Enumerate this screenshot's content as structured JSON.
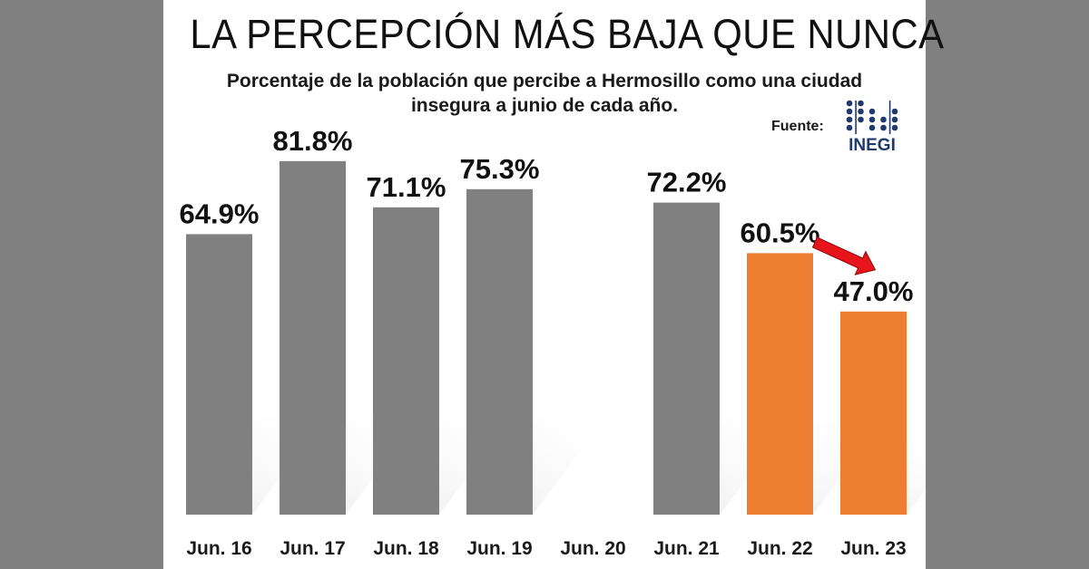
{
  "header": {
    "title": "LA PERCEPCIÓN MÁS BAJA QUE NUNCA",
    "subtitle": "Porcentaje de la población que percibe a Hermosillo como una ciudad insegura a junio de cada año.",
    "source_label": "Fuente:",
    "source_logo_text": "INEGI"
  },
  "colors": {
    "background": "#808080",
    "panel": "#ffffff",
    "bar_gray": "#808080",
    "bar_orange": "#ed7d31",
    "arrow": "#e8141c",
    "logo": "#1f3a6e"
  },
  "chart_data": {
    "type": "bar",
    "categories": [
      "Jun. 16",
      "Jun. 17",
      "Jun. 18",
      "Jun. 19",
      "Jun. 20",
      "Jun. 21",
      "Jun. 22",
      "Jun. 23"
    ],
    "values": [
      64.9,
      81.8,
      71.1,
      75.3,
      null,
      72.2,
      60.5,
      47.0
    ],
    "data_labels": [
      "64.9%",
      "81.8%",
      "71.1%",
      "75.3%",
      "",
      "72.2%",
      "60.5%",
      "47.0%"
    ],
    "bar_colors": [
      "gray",
      "gray",
      "gray",
      "gray",
      "gray",
      "gray",
      "orange",
      "orange"
    ],
    "ylim": [
      0,
      100
    ],
    "grid": false,
    "annotations": [
      {
        "type": "arrow",
        "from": "Jun. 22",
        "to": "Jun. 23",
        "color": "red"
      }
    ]
  }
}
